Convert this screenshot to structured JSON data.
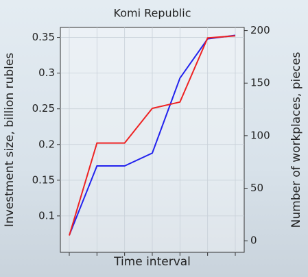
{
  "chart_data": {
    "type": "line",
    "title": "Komi Republic",
    "x_label": "Time interval",
    "y_label": "Investment size, billion rubles",
    "y2_label": "Number of workplaces, pieces",
    "categories": [
      null,
      null,
      null,
      null,
      null,
      null,
      null
    ],
    "series": [
      {
        "color": "#2222ee",
        "values": [
          0.073,
          0.17,
          0.17,
          0.188,
          0.293,
          0.348,
          0.353
        ]
      },
      {
        "color": "#ee2222",
        "axis": "y2",
        "values": [
          5,
          93,
          93,
          126,
          132,
          193,
          195
        ]
      }
    ],
    "ylim": [
      0.049,
      0.364
    ],
    "yticks": [
      0.1,
      0.15,
      0.2,
      0.25,
      0.3,
      0.35
    ],
    "y2lim": [
      -11,
      203
    ],
    "y2ticks": [
      0,
      50,
      100,
      150,
      200
    ],
    "grid": true
  }
}
